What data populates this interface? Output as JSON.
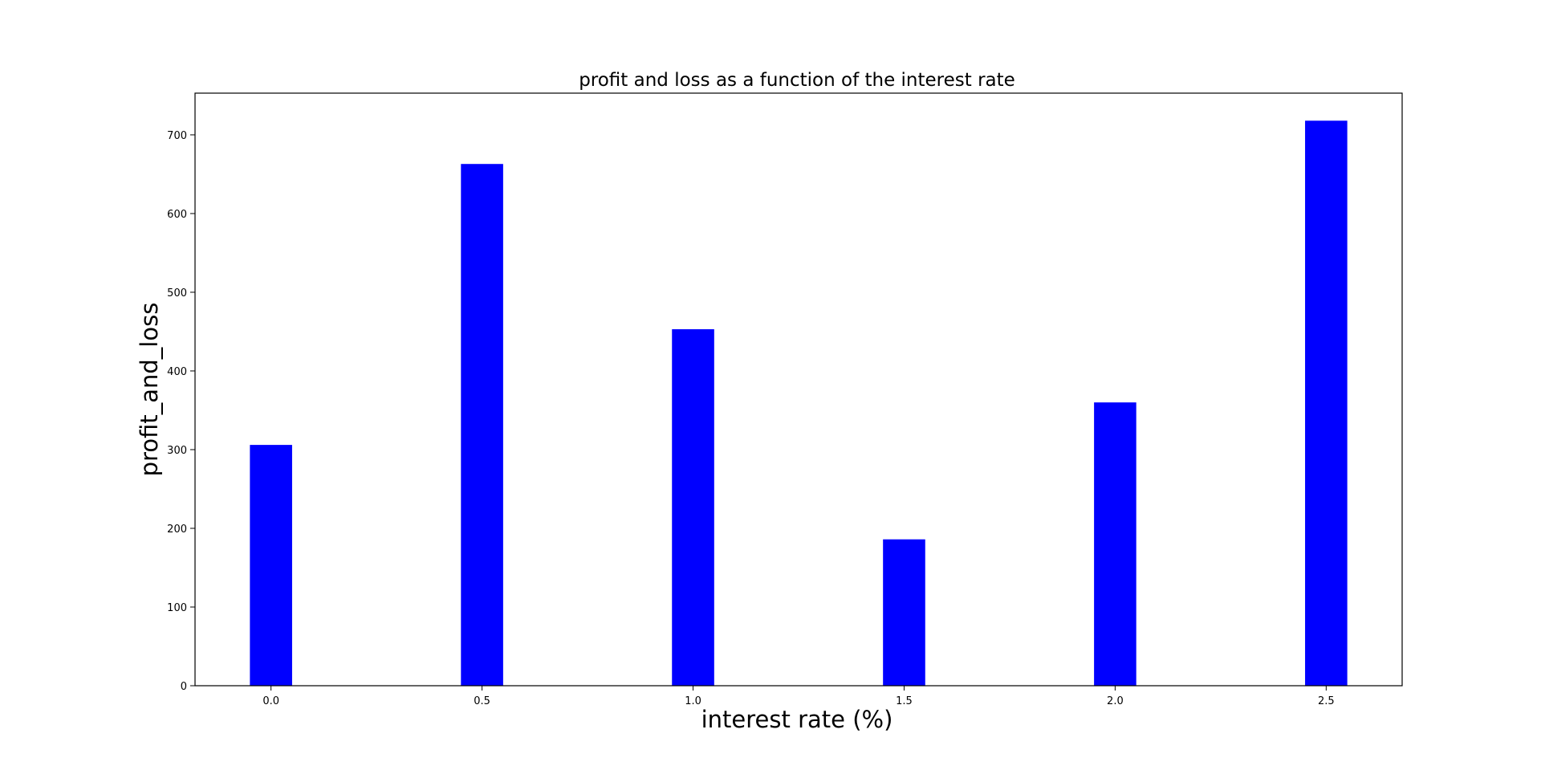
{
  "chart_data": {
    "type": "bar",
    "title": "profit and loss as a function of the interest rate",
    "xlabel": "interest rate (%)",
    "ylabel": "profit_and_loss",
    "x": [
      0.0,
      0.5,
      1.0,
      1.5,
      2.0,
      2.5
    ],
    "values": [
      306,
      663,
      453,
      186,
      360,
      718
    ],
    "bar_width": 0.1,
    "xlim": [
      -0.18,
      2.68
    ],
    "ylim": [
      0,
      753
    ],
    "xticks": [
      "0.0",
      "0.5",
      "1.0",
      "1.5",
      "2.0",
      "2.5"
    ],
    "yticks": [
      "0",
      "100",
      "200",
      "300",
      "400",
      "500",
      "600",
      "700"
    ],
    "bar_color": "#0000ff",
    "grid": false,
    "legend": "none"
  }
}
